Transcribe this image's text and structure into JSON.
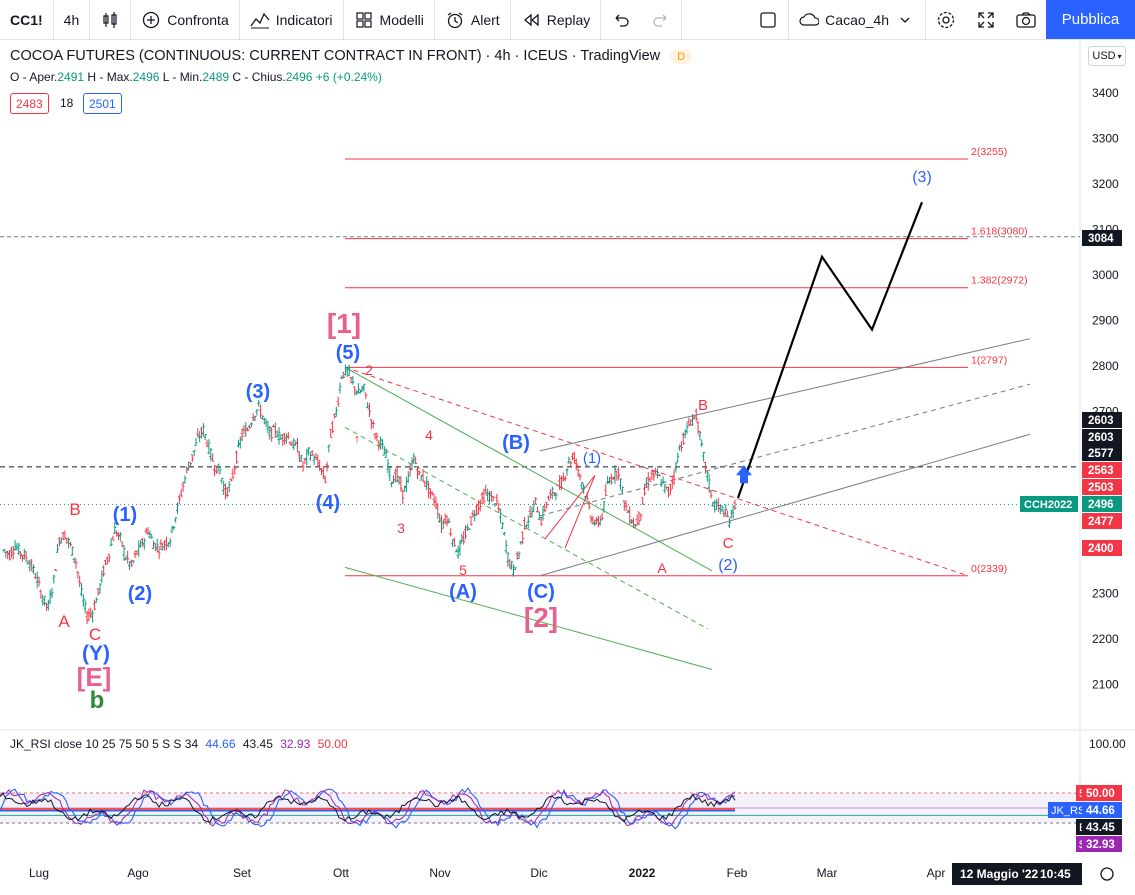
{
  "toolbar": {
    "symbol": "CC1!",
    "interval": "4h",
    "compare_label": "Confronta",
    "indicators_label": "Indicatori",
    "templates_label": "Modelli",
    "alert_label": "Alert",
    "replay_label": "Replay",
    "layout_name": "Cacao_4h",
    "publish_label": "Pubblica"
  },
  "legend": {
    "title": "COCOA FUTURES (CONTINUOUS: CURRENT CONTRACT IN FRONT) · 4h · ICEUS · TradingView",
    "badge": "D",
    "o_label": "O - Aper.",
    "o": "2491",
    "h_label": "H - Max.",
    "h": "2496",
    "l_label": "L - Min.",
    "l": "2489",
    "c_label": "C - Chius.",
    "c": "2496",
    "change": "+6 (+0.24%)",
    "bid": "2483",
    "spread": "18",
    "ask": "2501"
  },
  "currency": "USD",
  "rsi_legend": "JK_RSI close 10 25 75 50 5 S S 34",
  "rsi_values": [
    "44.66",
    "43.45",
    "32.93",
    "50.00"
  ],
  "colors": {
    "up": "#089981",
    "down": "#f23645",
    "blue": "#2962ff",
    "pink": "#e8608c",
    "green": "#2e8b3d"
  },
  "chart_data": [
    {
      "type": "line",
      "title": "COCOA FUTURES (CONTINUOUS: CURRENT CONTRACT IN FRONT)",
      "x_ticks": [
        "Lug",
        "Ago",
        "Set",
        "Ott",
        "Nov",
        "Dic",
        "2022",
        "Feb",
        "Mar",
        "Apr"
      ],
      "y_ticks": [
        2100,
        2200,
        2300,
        2400,
        2500,
        2600,
        2700,
        2800,
        2900,
        3000,
        3100,
        3200,
        3300,
        3400
      ],
      "ylim": [
        2030,
        3500
      ],
      "series": [
        {
          "values": [
            2395,
            2385,
            2405,
            2390,
            2380,
            2360,
            2330,
            2290,
            2270,
            2330,
            2420,
            2430,
            2405,
            2370,
            2300,
            2250,
            2260,
            2300,
            2350,
            2390,
            2440,
            2420,
            2380,
            2360,
            2390,
            2410,
            2440,
            2410,
            2400,
            2410,
            2420,
            2470,
            2520,
            2570,
            2600,
            2640,
            2660,
            2620,
            2580,
            2570,
            2520,
            2540,
            2600,
            2650,
            2660,
            2690,
            2710,
            2680,
            2650,
            2660,
            2640,
            2650,
            2630,
            2620,
            2580,
            2610,
            2600,
            2580,
            2550,
            2650,
            2700,
            2780,
            2790,
            2760,
            2740,
            2750,
            2700,
            2650,
            2630,
            2600,
            2550,
            2560,
            2520,
            2550,
            2600,
            2560,
            2550,
            2520,
            2500,
            2450,
            2470,
            2420,
            2390,
            2420,
            2450,
            2480,
            2500,
            2520,
            2510,
            2500,
            2450,
            2380,
            2350,
            2390,
            2450,
            2470,
            2500,
            2460,
            2500,
            2520,
            2530,
            2550,
            2590,
            2600,
            2560,
            2520,
            2470,
            2450,
            2470,
            2540,
            2560,
            2570,
            2500,
            2470,
            2450,
            2480,
            2540,
            2560,
            2560,
            2540,
            2520,
            2560,
            2620,
            2650,
            2680,
            2690,
            2620,
            2560,
            2500,
            2490,
            2480,
            2460,
            2496
          ]
        }
      ],
      "annotations": [
        "A",
        "B",
        "C",
        "(Y)",
        "[E]",
        "b",
        "(1)",
        "(2)",
        "(3)",
        "(4)",
        "(5)",
        "[1]",
        "2",
        "↑",
        "3",
        "4",
        "5",
        "(A)",
        "(B)",
        "(C)",
        "[2]",
        "(1)",
        "A",
        "B",
        "C",
        "(2)",
        "(3)"
      ],
      "fib_levels": [
        {
          "label": "2(3255)",
          "value": 3255
        },
        {
          "label": "1.618(3080)",
          "value": 3080
        },
        {
          "label": "1.382(2972)",
          "value": 2972
        },
        {
          "label": "1(2797)",
          "value": 2797
        },
        {
          "label": "0(2339)",
          "value": 2339
        }
      ],
      "axis_badges": [
        {
          "label": "3084",
          "style": "dark"
        },
        {
          "label": "2603",
          "style": "dark"
        },
        {
          "label": "2603",
          "style": "dark"
        },
        {
          "label": "2577",
          "style": "dark"
        },
        {
          "label": "2563",
          "style": "red"
        },
        {
          "label": "2503",
          "style": "red"
        },
        {
          "label": "2496",
          "style": "green"
        },
        {
          "label": "2477",
          "style": "red"
        },
        {
          "label": "2400",
          "style": "red"
        }
      ],
      "symbol_tag": "CCH2022",
      "forecast_path": [
        2510,
        3040,
        2880,
        3160
      ]
    },
    {
      "type": "line",
      "title": "JK_RSI close 10 25 75 50 5 S S 34",
      "y_ticks": [
        50,
        100
      ],
      "ylim": [
        20,
        110
      ],
      "axis_badges": [
        {
          "prefix": "50",
          "label": "50.00",
          "style": "red"
        },
        {
          "prefix": "JK_RSI",
          "label": "44.66",
          "style": "blue"
        },
        {
          "prefix": "E",
          "label": "43.45",
          "style": "dark"
        },
        {
          "prefix": "$",
          "label": "32.93",
          "style": "purple"
        }
      ]
    }
  ],
  "time_axis_label": "12 Maggio '22",
  "time_axis_clock": "10:45"
}
